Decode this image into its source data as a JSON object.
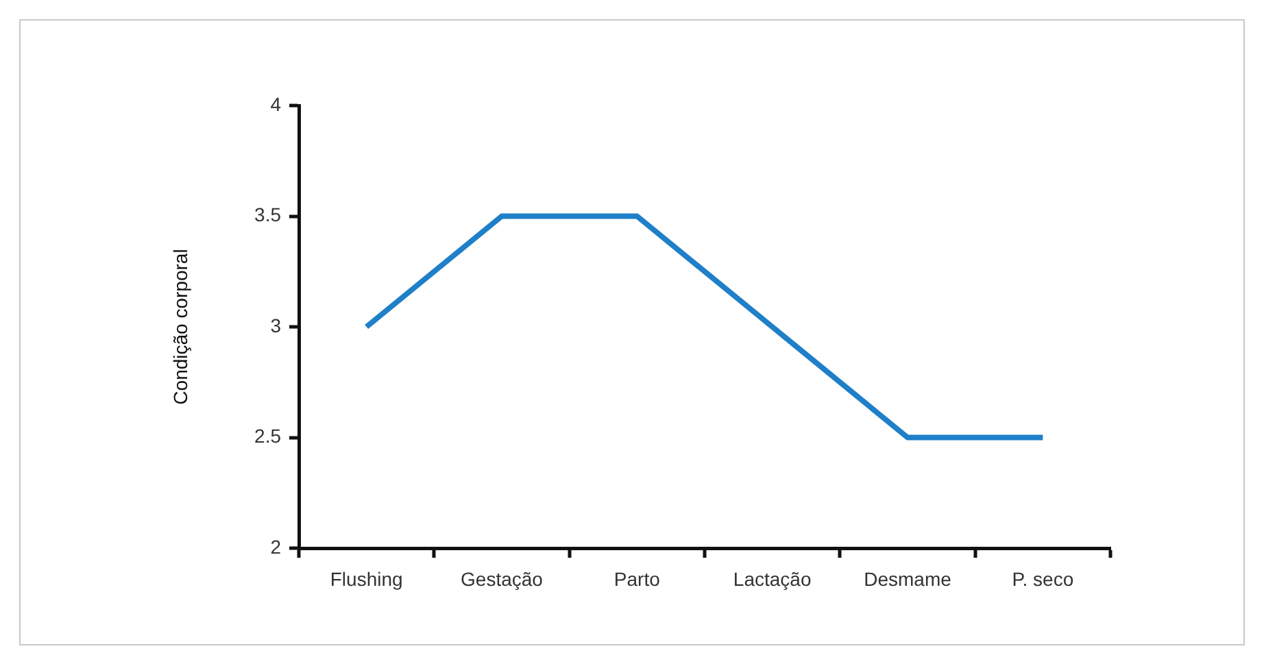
{
  "chart_data": {
    "type": "line",
    "ylabel": "Condição corporal",
    "categories": [
      "Flushing",
      "Gestação",
      "Parto",
      "Lactação",
      "Desmame",
      "P. seco"
    ],
    "series": [
      {
        "color": "#1f7fc8",
        "values": [
          3,
          3.5,
          3.5,
          3,
          2.5,
          2.5
        ]
      }
    ],
    "ylim": [
      2,
      4
    ],
    "yticks": [
      2,
      2.5,
      3,
      3.5,
      4
    ],
    "grid": false,
    "legend": false,
    "marker": "none",
    "line_style": "solid"
  }
}
